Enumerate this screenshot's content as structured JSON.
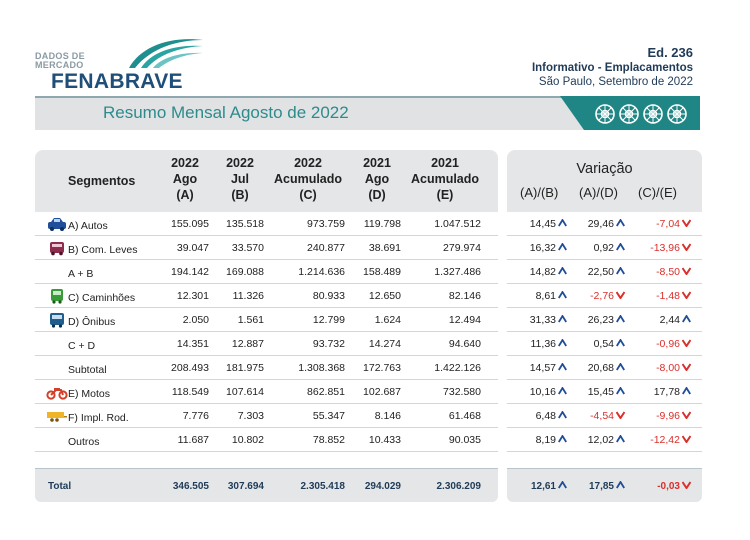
{
  "header": {
    "logo_small": "DADOS DE MERCADO",
    "logo_main": "FENABRAVE",
    "edition": "Ed. 236",
    "publication": "Informativo - Emplacamentos",
    "place_date": "São Paulo, Setembro de 2022",
    "banner_title": "Resumo Mensal Agosto de 2022"
  },
  "table": {
    "segment_header": "Segmentos",
    "columns": [
      {
        "l1": "2022",
        "l2": "Ago",
        "l3": "(A)"
      },
      {
        "l1": "2022",
        "l2": "Jul",
        "l3": "(B)"
      },
      {
        "l1": "2022",
        "l2": "Acumulado",
        "l3": "(C)"
      },
      {
        "l1": "2021",
        "l2": "Ago",
        "l3": "(D)"
      },
      {
        "l1": "2021",
        "l2": "Acumulado",
        "l3": "(E)"
      }
    ],
    "variation_header": "Variação",
    "variation_columns": [
      "(A)/(B)",
      "(A)/(D)",
      "(C)/(E)"
    ],
    "rows": [
      {
        "label": "A) Autos",
        "icon": "car-icon",
        "values": [
          "155.095",
          "135.518",
          "973.759",
          "119.798",
          "1.047.512"
        ],
        "var": [
          "14,45",
          "29,46",
          "-7,04"
        ],
        "dir": [
          "up",
          "up",
          "down"
        ]
      },
      {
        "label": "B) Com. Leves",
        "icon": "van-icon",
        "values": [
          "39.047",
          "33.570",
          "240.877",
          "38.691",
          "279.974"
        ],
        "var": [
          "16,32",
          "0,92",
          "-13,96"
        ],
        "dir": [
          "up",
          "up",
          "down"
        ]
      },
      {
        "label": "A + B",
        "icon": "",
        "values": [
          "194.142",
          "169.088",
          "1.214.636",
          "158.489",
          "1.327.486"
        ],
        "var": [
          "14,82",
          "22,50",
          "-8,50"
        ],
        "dir": [
          "up",
          "up",
          "down"
        ]
      },
      {
        "label": "C) Caminhões",
        "icon": "truck-icon",
        "values": [
          "12.301",
          "11.326",
          "80.933",
          "12.650",
          "82.146"
        ],
        "var": [
          "8,61",
          "-2,76",
          "-1,48"
        ],
        "dir": [
          "up",
          "down",
          "down"
        ]
      },
      {
        "label": "D) Ônibus",
        "icon": "bus-icon",
        "values": [
          "2.050",
          "1.561",
          "12.799",
          "1.624",
          "12.494"
        ],
        "var": [
          "31,33",
          "26,23",
          "2,44"
        ],
        "dir": [
          "up",
          "up",
          "up"
        ]
      },
      {
        "label": "C + D",
        "icon": "",
        "values": [
          "14.351",
          "12.887",
          "93.732",
          "14.274",
          "94.640"
        ],
        "var": [
          "11,36",
          "0,54",
          "-0,96"
        ],
        "dir": [
          "up",
          "up",
          "down"
        ]
      },
      {
        "label": "Subtotal",
        "icon": "",
        "values": [
          "208.493",
          "181.975",
          "1.308.368",
          "172.763",
          "1.422.126"
        ],
        "var": [
          "14,57",
          "20,68",
          "-8,00"
        ],
        "dir": [
          "up",
          "up",
          "down"
        ]
      },
      {
        "label": "E) Motos",
        "icon": "motorcycle-icon",
        "values": [
          "118.549",
          "107.614",
          "862.851",
          "102.687",
          "732.580"
        ],
        "var": [
          "10,16",
          "15,45",
          "17,78"
        ],
        "dir": [
          "up",
          "up",
          "up"
        ]
      },
      {
        "label": "F) Impl. Rod.",
        "icon": "trailer-icon",
        "values": [
          "7.776",
          "7.303",
          "55.347",
          "8.146",
          "61.468"
        ],
        "var": [
          "6,48",
          "-4,54",
          "-9,96"
        ],
        "dir": [
          "up",
          "down",
          "down"
        ]
      },
      {
        "label": "Outros",
        "icon": "",
        "values": [
          "11.687",
          "10.802",
          "78.852",
          "10.433",
          "90.035"
        ],
        "var": [
          "8,19",
          "12,02",
          "-12,42"
        ],
        "dir": [
          "up",
          "up",
          "down"
        ]
      }
    ],
    "total": {
      "label": "Total",
      "values": [
        "346.505",
        "307.694",
        "2.305.418",
        "294.029",
        "2.306.209"
      ],
      "var": [
        "12,61",
        "17,85",
        "-0,03"
      ],
      "dir": [
        "up",
        "up",
        "down"
      ]
    }
  },
  "colors": {
    "up": "#1f4e9a",
    "down": "#d9302c",
    "teal": "#1f8f8f",
    "navy": "#1f3b57"
  }
}
